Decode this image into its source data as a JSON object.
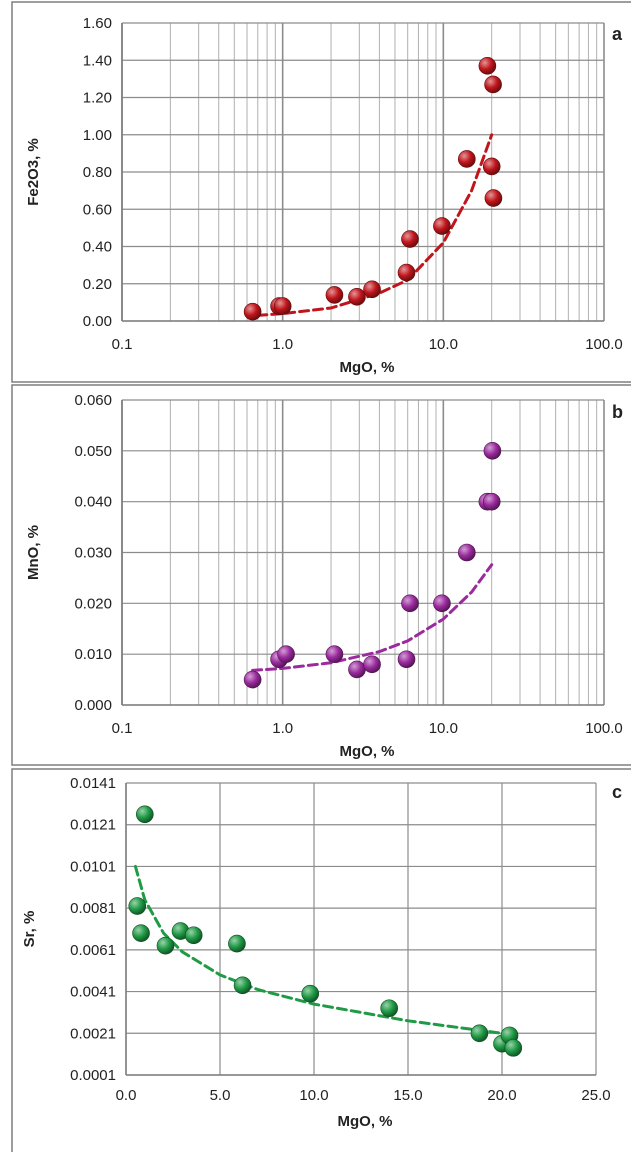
{
  "chart_data": [
    {
      "type": "scatter",
      "panel_label": "a",
      "xlabel": "MgO, %",
      "ylabel": "Fe2O3, %",
      "x_scale": "log",
      "xlim": [
        0.1,
        100
      ],
      "ylim": [
        0,
        1.6
      ],
      "x_ticks": [
        "0.1",
        "1.0",
        "10.0",
        "100.0"
      ],
      "y_ticks": [
        "0.00",
        "0.20",
        "0.40",
        "0.60",
        "0.80",
        "1.00",
        "1.20",
        "1.40",
        "1.60"
      ],
      "grid": true,
      "legend": "none",
      "marker_color": "#c0151b",
      "trendline": {
        "type": "exponential",
        "color": "#c0151b",
        "style": "dashed",
        "points": [
          [
            0.7,
            0.03
          ],
          [
            1,
            0.04
          ],
          [
            2,
            0.07
          ],
          [
            4,
            0.15
          ],
          [
            6,
            0.22
          ],
          [
            10,
            0.42
          ],
          [
            15,
            0.7
          ],
          [
            20,
            1.0
          ]
        ]
      },
      "points": [
        {
          "x": 0.65,
          "y": 0.05
        },
        {
          "x": 0.95,
          "y": 0.08
        },
        {
          "x": 1.0,
          "y": 0.08
        },
        {
          "x": 2.1,
          "y": 0.14
        },
        {
          "x": 2.9,
          "y": 0.13
        },
        {
          "x": 3.6,
          "y": 0.17
        },
        {
          "x": 5.9,
          "y": 0.26
        },
        {
          "x": 6.2,
          "y": 0.44
        },
        {
          "x": 9.8,
          "y": 0.51
        },
        {
          "x": 14.0,
          "y": 0.87
        },
        {
          "x": 18.8,
          "y": 1.37
        },
        {
          "x": 20.0,
          "y": 0.83
        },
        {
          "x": 20.4,
          "y": 1.27
        },
        {
          "x": 20.5,
          "y": 0.66
        }
      ]
    },
    {
      "type": "scatter",
      "panel_label": "b",
      "xlabel": "MgO, %",
      "ylabel": "MnO, %",
      "x_scale": "log",
      "xlim": [
        0.1,
        100
      ],
      "ylim": [
        0,
        0.06
      ],
      "x_ticks": [
        "0.1",
        "1.0",
        "10.0",
        "100.0"
      ],
      "y_ticks": [
        "0.000",
        "0.010",
        "0.020",
        "0.030",
        "0.040",
        "0.050",
        "0.060"
      ],
      "grid": true,
      "legend": "none",
      "marker_color": "#9b2a9e",
      "trendline": {
        "type": "linear",
        "color": "#9b2a9e",
        "style": "dashed",
        "points": [
          [
            0.65,
            0.0068
          ],
          [
            1,
            0.0072
          ],
          [
            2,
            0.0083
          ],
          [
            4,
            0.0105
          ],
          [
            6,
            0.0126
          ],
          [
            10,
            0.0169
          ],
          [
            15,
            0.0222
          ],
          [
            20,
            0.0276
          ]
        ]
      },
      "points": [
        {
          "x": 0.65,
          "y": 0.005
        },
        {
          "x": 0.95,
          "y": 0.009
        },
        {
          "x": 1.05,
          "y": 0.01
        },
        {
          "x": 2.1,
          "y": 0.01
        },
        {
          "x": 2.9,
          "y": 0.007
        },
        {
          "x": 3.6,
          "y": 0.008
        },
        {
          "x": 5.9,
          "y": 0.009
        },
        {
          "x": 6.2,
          "y": 0.02
        },
        {
          "x": 9.8,
          "y": 0.02
        },
        {
          "x": 14.0,
          "y": 0.03
        },
        {
          "x": 18.8,
          "y": 0.04
        },
        {
          "x": 20.0,
          "y": 0.04
        },
        {
          "x": 20.2,
          "y": 0.05
        }
      ]
    },
    {
      "type": "scatter",
      "panel_label": "c",
      "xlabel": "MgO, %",
      "ylabel": "Sr, %",
      "x_scale": "linear",
      "xlim": [
        0,
        25
      ],
      "ylim": [
        0.0001,
        0.0141
      ],
      "x_ticks": [
        "0.0",
        "5.0",
        "10.0",
        "15.0",
        "20.0",
        "25.0"
      ],
      "y_ticks": [
        "0.0001",
        "0.0021",
        "0.0041",
        "0.0061",
        "0.0081",
        "0.0101",
        "0.0121",
        "0.0141"
      ],
      "grid": true,
      "legend": "none",
      "marker_color": "#1f9a45",
      "trendline": {
        "type": "logarithmic",
        "color": "#1f9a45",
        "style": "dashed",
        "points": [
          [
            0.5,
            0.0101
          ],
          [
            1,
            0.0085
          ],
          [
            2,
            0.0069
          ],
          [
            3,
            0.006
          ],
          [
            5,
            0.0049
          ],
          [
            7,
            0.0042
          ],
          [
            10,
            0.0035
          ],
          [
            15,
            0.0027
          ],
          [
            20,
            0.0021
          ],
          [
            20.5,
            0.002
          ]
        ]
      },
      "points": [
        {
          "x": 0.6,
          "y": 0.0082
        },
        {
          "x": 0.8,
          "y": 0.0069
        },
        {
          "x": 1.0,
          "y": 0.0126
        },
        {
          "x": 2.1,
          "y": 0.0063
        },
        {
          "x": 2.9,
          "y": 0.007
        },
        {
          "x": 3.6,
          "y": 0.0068
        },
        {
          "x": 5.9,
          "y": 0.0064
        },
        {
          "x": 6.2,
          "y": 0.0044
        },
        {
          "x": 9.8,
          "y": 0.004
        },
        {
          "x": 14.0,
          "y": 0.0033
        },
        {
          "x": 18.8,
          "y": 0.0021
        },
        {
          "x": 20.0,
          "y": 0.0016
        },
        {
          "x": 20.4,
          "y": 0.002
        },
        {
          "x": 20.6,
          "y": 0.0014
        }
      ]
    }
  ]
}
